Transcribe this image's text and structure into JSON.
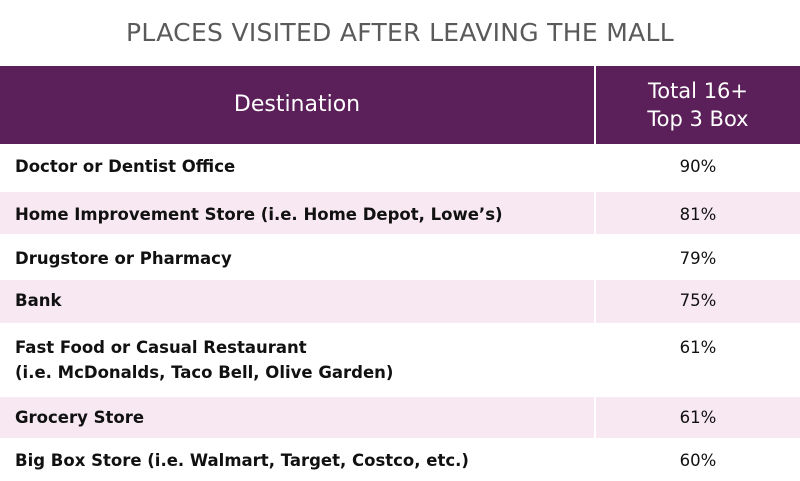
{
  "title": "PLACES VISITED AFTER LEAVING THE MALL",
  "header": {
    "destination": "Destination",
    "value_line1": "Total 16+",
    "value_line2": "Top 3 Box"
  },
  "rows": [
    {
      "line1": "Doctor or Dentist Office",
      "line2": "",
      "value": "90%"
    },
    {
      "line1": "Home Improvement Store (i.e. Home Depot, Lowe’s)",
      "line2": "",
      "value": "81%"
    },
    {
      "line1": "Drugstore or Pharmacy",
      "line2": "",
      "value": "79%"
    },
    {
      "line1": "Bank",
      "line2": "",
      "value": "75%"
    },
    {
      "line1": "Fast Food or Casual Restaurant",
      "line2": "(i.e. McDonalds, Taco Bell, Olive Garden)",
      "value": "61%"
    },
    {
      "line1": "Grocery Store",
      "line2": "",
      "value": "61%"
    },
    {
      "line1": "Big Box Store (i.e. Walmart, Target, Costco, etc.)",
      "line2": "",
      "value": "60%"
    }
  ],
  "colors": {
    "header_bg": "#5b1f59",
    "row_alt_bg": "#f7e8f1",
    "title_text": "#5a5a5a"
  }
}
